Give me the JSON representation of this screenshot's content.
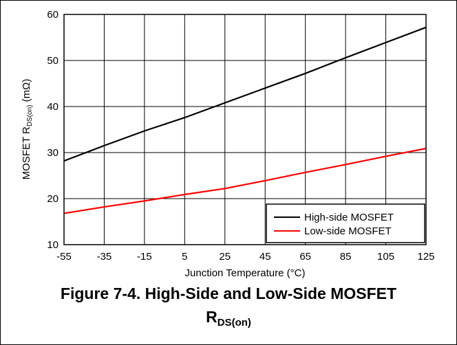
{
  "chart_data": {
    "type": "line",
    "xlabel": "Junction Temperature (°C)",
    "ylabel": "MOSFET R",
    "ylabel_sub": "DS(on)",
    "ylabel_unit": " (mΩ)",
    "x_ticks": [
      "-55",
      "-35",
      "-15",
      "5",
      "25",
      "45",
      "65",
      "85",
      "105",
      "125"
    ],
    "y_ticks": [
      "10",
      "20",
      "30",
      "40",
      "50",
      "60"
    ],
    "xlim": [
      -55,
      125
    ],
    "ylim": [
      10,
      60
    ],
    "grid": true,
    "legend_position": "bottom-right",
    "series": [
      {
        "name": "High-side MOSFET",
        "color": "#000000",
        "x": [
          -55,
          -35,
          -15,
          5,
          25,
          45,
          65,
          85,
          105,
          125
        ],
        "y": [
          28.2,
          31.5,
          34.7,
          37.6,
          40.8,
          44.0,
          47.2,
          50.6,
          53.9,
          57.2
        ]
      },
      {
        "name": "Low-side MOSFET",
        "color": "#ff0000",
        "x": [
          -55,
          -35,
          -15,
          5,
          25,
          45,
          65,
          85,
          105,
          125
        ],
        "y": [
          16.8,
          18.2,
          19.5,
          20.9,
          22.2,
          23.9,
          25.7,
          27.4,
          29.2,
          30.9
        ]
      }
    ]
  },
  "caption": {
    "line1": "Figure 7-4. High-Side and Low-Side MOSFET",
    "line2_main": "R",
    "line2_sub": "DS(on)"
  }
}
